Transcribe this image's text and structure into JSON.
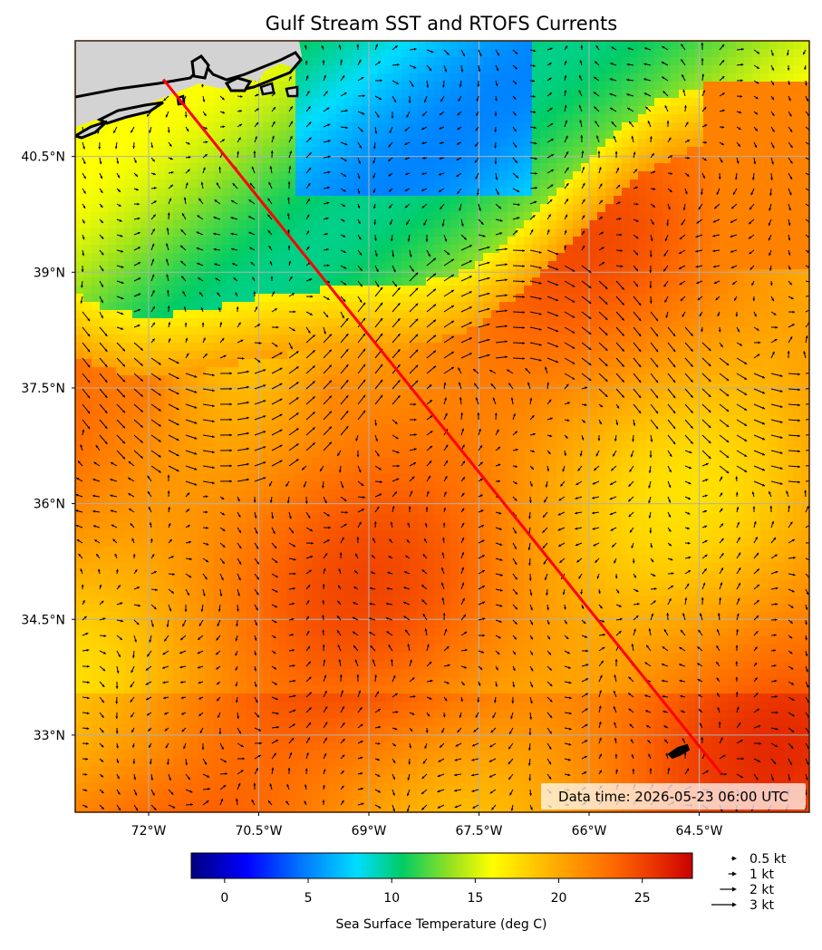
{
  "title": "Gulf Stream SST and RTOFS Currents",
  "data_time": "Data time: 2026-05-23 06:00 UTC",
  "lat_ticks": [
    {
      "value": 40.5,
      "label": "40.5°N"
    },
    {
      "value": 39.0,
      "label": "39°N"
    },
    {
      "value": 37.5,
      "label": "37.5°N"
    },
    {
      "value": 36.0,
      "label": "36°N"
    },
    {
      "value": 34.5,
      "label": "34.5°N"
    },
    {
      "value": 33.0,
      "label": "33°N"
    }
  ],
  "lon_ticks": [
    {
      "value": -72.0,
      "label": "72°W"
    },
    {
      "value": -70.5,
      "label": "70.5°W"
    },
    {
      "value": -69.0,
      "label": "69°W"
    },
    {
      "value": -67.5,
      "label": "67.5°W"
    },
    {
      "value": -66.0,
      "label": "66°W"
    },
    {
      "value": -64.5,
      "label": "64.5°W"
    }
  ],
  "extent": {
    "lon_min": -73.0,
    "lon_max": -63.0,
    "lat_min": 32.0,
    "lat_max": 42.0
  },
  "colorbar": {
    "label": "Sea Surface Temperature (deg C)",
    "vmin": -2,
    "vmax": 28,
    "ticks": [
      {
        "value": 0,
        "label": "0"
      },
      {
        "value": 5,
        "label": "5"
      },
      {
        "value": 10,
        "label": "10"
      },
      {
        "value": 15,
        "label": "15"
      },
      {
        "value": 20,
        "label": "20"
      },
      {
        "value": 25,
        "label": "25"
      }
    ],
    "colormap": "jet"
  },
  "current_legend": [
    {
      "speed_kt": 0.5,
      "label": "0.5 kt"
    },
    {
      "speed_kt": 1,
      "label": "1 kt"
    },
    {
      "speed_kt": 2,
      "label": "2 kt"
    },
    {
      "speed_kt": 3,
      "label": "3 kt"
    }
  ],
  "route": {
    "color": "#ff0000",
    "start": {
      "lon": -71.8,
      "lat": 41.5
    },
    "end": {
      "lon": -64.2,
      "lat": 32.5
    }
  },
  "colors": {
    "land": "#d3d3d3",
    "coast": "#000000",
    "grid": "#b0b0b0",
    "frame": "#3a1a00"
  }
}
